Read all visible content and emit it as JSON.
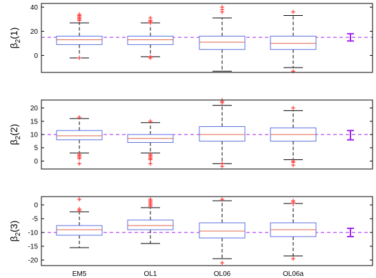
{
  "colors": {
    "box": "#5b6ee0",
    "median": "#e0604a",
    "whisker": "#000000",
    "outlier": "#ff1a1a",
    "reference": "#a020f0",
    "frame": "#000000"
  },
  "chart_data": [
    {
      "type": "box",
      "ylabel": "β2(1)",
      "ylabel_parts": {
        "base": "β",
        "sub": "2",
        "tail": "(1)"
      },
      "categories": [
        "EM5",
        "OL1",
        "OL06",
        "OL06a"
      ],
      "ylim": [
        -14,
        43
      ],
      "yticks": [
        0,
        20,
        40
      ],
      "boxes": [
        {
          "q1": 9,
          "median": 13,
          "q3": 16,
          "whisker_low": -2,
          "whisker_high": 27,
          "outliers": [
            -2,
            29,
            30,
            31,
            32,
            33,
            34
          ]
        },
        {
          "q1": 9,
          "median": 13,
          "q3": 16,
          "whisker_low": -1,
          "whisker_high": 27,
          "outliers": [
            -2,
            -1,
            27,
            28,
            29,
            31
          ]
        },
        {
          "q1": 5,
          "median": 11,
          "q3": 16,
          "whisker_low": -13,
          "whisker_high": 31,
          "outliers": [
            36,
            38,
            40
          ]
        },
        {
          "q1": 5,
          "median": 10,
          "q3": 16,
          "whisker_low": -10,
          "whisker_high": 33,
          "outliers": [
            -13,
            36
          ]
        }
      ],
      "reference_value": 15,
      "reference_interval": [
        12,
        18
      ]
    },
    {
      "type": "box",
      "ylabel": "β2(2)",
      "ylabel_parts": {
        "base": "β",
        "sub": "2",
        "tail": "(2)"
      },
      "categories": [
        "EM5",
        "OL1",
        "OL06",
        "OL06a"
      ],
      "ylim": [
        -3,
        23
      ],
      "yticks": [
        0,
        5,
        10,
        15,
        20
      ],
      "boxes": [
        {
          "q1": 8,
          "median": 9.5,
          "q3": 11.5,
          "whisker_low": 3,
          "whisker_high": 16,
          "outliers": [
            -1,
            1,
            1.5,
            2,
            2.5,
            16.5
          ]
        },
        {
          "q1": 7,
          "median": 8.5,
          "q3": 10,
          "whisker_low": 3,
          "whisker_high": 14.5,
          "outliers": [
            -1,
            0.5,
            1,
            1.5,
            2,
            2.5,
            15
          ]
        },
        {
          "q1": 7.5,
          "median": 10,
          "q3": 13,
          "whisker_low": -1,
          "whisker_high": 21,
          "outliers": [
            -2,
            -1,
            22,
            22.5,
            23
          ]
        },
        {
          "q1": 7.5,
          "median": 10,
          "q3": 12.5,
          "whisker_low": 0.5,
          "whisker_high": 19,
          "outliers": [
            -1.5,
            -0.5,
            0,
            20
          ]
        }
      ],
      "reference_value": 10,
      "reference_interval": [
        8,
        11.5
      ]
    },
    {
      "type": "box",
      "ylabel": "β2(3)",
      "ylabel_parts": {
        "base": "β",
        "sub": "2",
        "tail": "(3)"
      },
      "categories": [
        "EM5",
        "OL1",
        "OL06",
        "OL06a"
      ],
      "ylim": [
        -22,
        3
      ],
      "yticks": [
        0,
        -5,
        -10,
        -15,
        -20
      ],
      "boxes": [
        {
          "q1": -11,
          "median": -9,
          "q3": -7.5,
          "whisker_low": -15.5,
          "whisker_high": -2.5,
          "outliers": [
            -2,
            -1.5,
            2
          ]
        },
        {
          "q1": -9,
          "median": -7.5,
          "q3": -5.5,
          "whisker_low": -14,
          "whisker_high": -1,
          "outliers": [
            -0.5,
            0,
            0.5,
            1,
            1.5,
            2
          ]
        },
        {
          "q1": -12,
          "median": -9.5,
          "q3": -6.5,
          "whisker_low": -19.5,
          "whisker_high": 1.5,
          "outliers": [
            -21,
            2
          ]
        },
        {
          "q1": -11.5,
          "median": -9,
          "q3": -6.5,
          "whisker_low": -18.5,
          "whisker_high": 0.5,
          "outliers": [
            -19.5,
            0.5,
            1,
            1.5
          ]
        }
      ],
      "reference_value": -10,
      "reference_interval": [
        -11.5,
        -8.5
      ]
    }
  ]
}
